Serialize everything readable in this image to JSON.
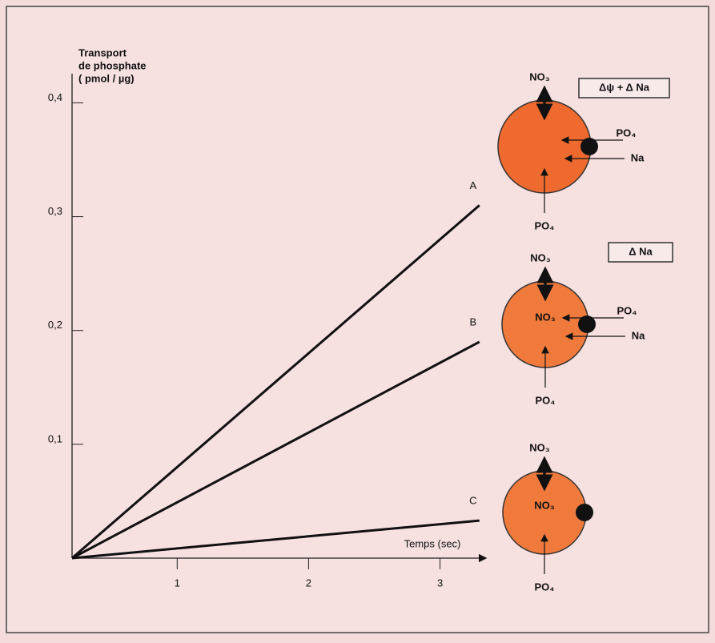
{
  "chart_data": {
    "type": "line",
    "y_label_lines": [
      "Transport",
      "de phosphate",
      "( pmol / µg)"
    ],
    "x_label": "Temps (sec)",
    "x": [
      0.2,
      3.3
    ],
    "series": [
      {
        "name": "A",
        "color": "#111111",
        "values": [
          0,
          0.31
        ]
      },
      {
        "name": "B",
        "color": "#111111",
        "values": [
          0,
          0.19
        ]
      },
      {
        "name": "C",
        "color": "#111111",
        "values": [
          0,
          0.033
        ]
      }
    ],
    "xlim": [
      0.2,
      3.35
    ],
    "xticks": [
      1,
      2,
      3
    ],
    "ylim": [
      0,
      0.42
    ],
    "yticks": [
      {
        "value": 0.1,
        "label": "0,1"
      },
      {
        "value": 0.2,
        "label": "0,2"
      },
      {
        "value": 0.3,
        "label": "0,3"
      },
      {
        "value": 0.4,
        "label": "0,4"
      }
    ],
    "diagrams": [
      {
        "box": "Δψ + Δ Na",
        "top": "NO₃",
        "right": [
          "PO₄",
          "Na"
        ],
        "bottom": "PO₄"
      },
      {
        "box": "Δ Na",
        "top": "NO₃",
        "inside": "NO₃",
        "right": [
          "PO₄",
          "Na"
        ],
        "bottom": "PO₄"
      },
      {
        "top": "NO₃",
        "inside": "NO₃",
        "bottom": "PO₄"
      }
    ]
  }
}
